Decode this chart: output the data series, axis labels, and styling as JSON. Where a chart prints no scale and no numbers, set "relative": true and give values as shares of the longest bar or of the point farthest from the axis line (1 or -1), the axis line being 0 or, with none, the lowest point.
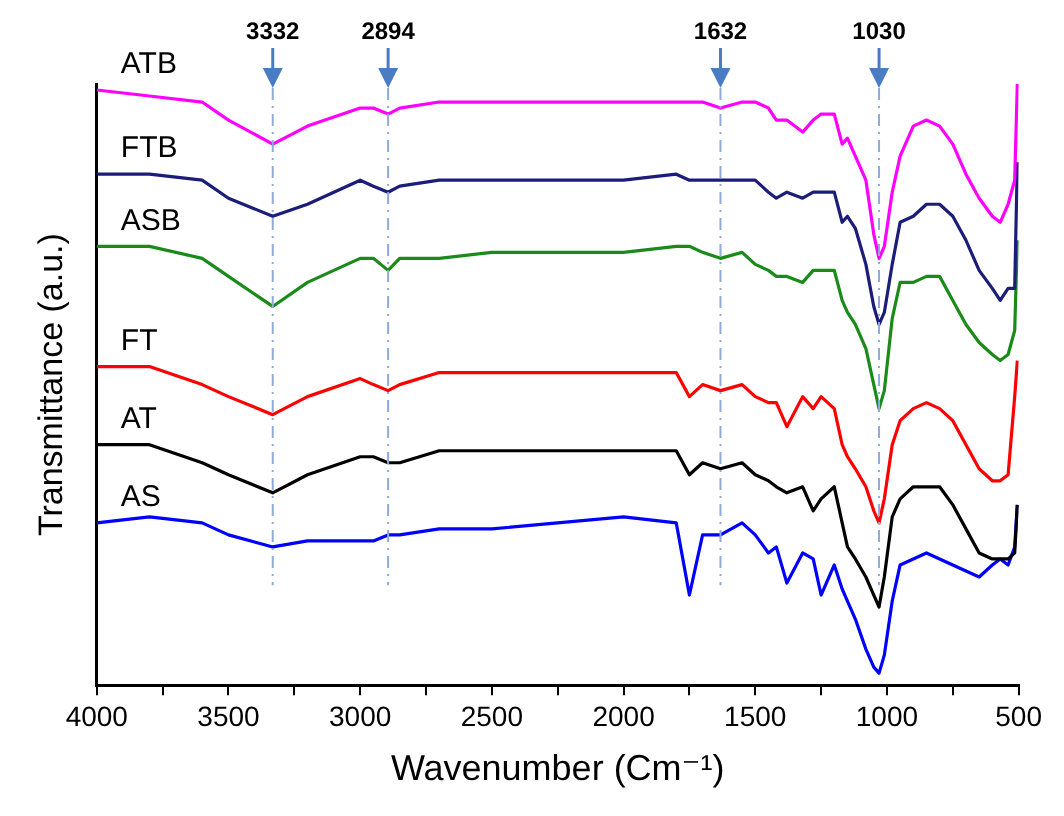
{
  "chart_data": {
    "type": "line",
    "relative": true,
    "xlabel": "Wavenumber (Cm⁻¹)",
    "ylabel": "Transmittance (a.u.)",
    "x": [
      4000,
      3800,
      3600,
      3500,
      3332,
      3200,
      3000,
      2950,
      2894,
      2850,
      2700,
      2500,
      2000,
      1800,
      1750,
      1700,
      1632,
      1550,
      1500,
      1450,
      1420,
      1380,
      1320,
      1280,
      1250,
      1200,
      1170,
      1150,
      1120,
      1080,
      1050,
      1030,
      1010,
      980,
      950,
      900,
      850,
      800,
      750,
      700,
      650,
      600,
      570,
      540,
      515,
      505
    ],
    "xlim": [
      4000,
      500
    ],
    "xticks": [
      4000,
      {
        "value": 3750,
        "label": null
      },
      3500,
      {
        "value": 3250,
        "label": null
      },
      3000,
      {
        "value": 2750,
        "label": null
      },
      2500,
      {
        "value": 2250,
        "label": null
      },
      2000,
      {
        "value": 1750,
        "label": null
      },
      1500,
      {
        "value": 1250,
        "label": null
      },
      1000,
      {
        "value": 750,
        "label": null
      },
      500
    ],
    "legend": false,
    "series": [
      {
        "name": "ATB",
        "color": "#ff00ff",
        "values": [
          0.99,
          0.98,
          0.97,
          0.94,
          0.9,
          0.93,
          0.96,
          0.96,
          0.95,
          0.96,
          0.97,
          0.97,
          0.97,
          0.97,
          0.97,
          0.97,
          0.96,
          0.97,
          0.97,
          0.96,
          0.94,
          0.94,
          0.92,
          0.94,
          0.95,
          0.95,
          0.9,
          0.91,
          0.88,
          0.84,
          0.75,
          0.71,
          0.73,
          0.82,
          0.88,
          0.93,
          0.94,
          0.93,
          0.9,
          0.85,
          0.81,
          0.78,
          0.77,
          0.8,
          0.84,
          1.0
        ]
      },
      {
        "name": "FTB",
        "color": "#1c1c7a",
        "values": [
          0.85,
          0.85,
          0.84,
          0.81,
          0.78,
          0.8,
          0.84,
          0.83,
          0.82,
          0.83,
          0.84,
          0.84,
          0.84,
          0.85,
          0.84,
          0.84,
          0.84,
          0.84,
          0.84,
          0.82,
          0.81,
          0.82,
          0.81,
          0.82,
          0.82,
          0.82,
          0.77,
          0.78,
          0.76,
          0.7,
          0.63,
          0.6,
          0.62,
          0.7,
          0.77,
          0.78,
          0.8,
          0.8,
          0.78,
          0.74,
          0.69,
          0.66,
          0.64,
          0.66,
          0.66,
          0.87
        ]
      },
      {
        "name": "ASB",
        "color": "#1a8a1a",
        "values": [
          0.73,
          0.73,
          0.71,
          0.68,
          0.63,
          0.67,
          0.71,
          0.71,
          0.69,
          0.71,
          0.71,
          0.72,
          0.72,
          0.73,
          0.73,
          0.72,
          0.71,
          0.72,
          0.7,
          0.69,
          0.68,
          0.68,
          0.67,
          0.69,
          0.69,
          0.69,
          0.64,
          0.62,
          0.6,
          0.56,
          0.5,
          0.46,
          0.49,
          0.61,
          0.67,
          0.67,
          0.68,
          0.68,
          0.64,
          0.6,
          0.57,
          0.55,
          0.54,
          0.55,
          0.59,
          0.74
        ]
      },
      {
        "name": "FT",
        "color": "#ff0000",
        "values": [
          0.53,
          0.53,
          0.5,
          0.48,
          0.45,
          0.48,
          0.51,
          0.5,
          0.49,
          0.5,
          0.52,
          0.52,
          0.52,
          0.52,
          0.48,
          0.5,
          0.49,
          0.5,
          0.48,
          0.47,
          0.47,
          0.43,
          0.48,
          0.46,
          0.48,
          0.46,
          0.4,
          0.38,
          0.36,
          0.33,
          0.29,
          0.27,
          0.31,
          0.4,
          0.44,
          0.46,
          0.47,
          0.46,
          0.44,
          0.4,
          0.36,
          0.34,
          0.34,
          0.35,
          0.48,
          0.54
        ]
      },
      {
        "name": "AT",
        "color": "#000000",
        "values": [
          0.4,
          0.4,
          0.37,
          0.35,
          0.32,
          0.35,
          0.38,
          0.38,
          0.37,
          0.37,
          0.39,
          0.39,
          0.39,
          0.39,
          0.35,
          0.37,
          0.36,
          0.37,
          0.35,
          0.34,
          0.33,
          0.32,
          0.33,
          0.29,
          0.31,
          0.33,
          0.27,
          0.23,
          0.21,
          0.18,
          0.15,
          0.13,
          0.18,
          0.28,
          0.31,
          0.33,
          0.33,
          0.33,
          0.3,
          0.26,
          0.22,
          0.21,
          0.21,
          0.21,
          0.22,
          0.3
        ]
      },
      {
        "name": "AS",
        "color": "#0000ff",
        "values": [
          0.27,
          0.28,
          0.27,
          0.25,
          0.23,
          0.24,
          0.24,
          0.24,
          0.25,
          0.25,
          0.26,
          0.26,
          0.28,
          0.27,
          0.15,
          0.25,
          0.25,
          0.27,
          0.25,
          0.22,
          0.23,
          0.17,
          0.22,
          0.21,
          0.15,
          0.2,
          0.16,
          0.14,
          0.11,
          0.06,
          0.03,
          0.02,
          0.05,
          0.14,
          0.2,
          0.21,
          0.22,
          0.21,
          0.2,
          0.19,
          0.18,
          0.2,
          0.21,
          0.2,
          0.23,
          0.3
        ]
      }
    ],
    "ref_lines": [
      {
        "axis": "x",
        "value": 3332,
        "label": "3332",
        "color": "#8faadc",
        "line_style": "dashed"
      },
      {
        "axis": "x",
        "value": 2894,
        "label": "2894",
        "color": "#8faadc",
        "line_style": "dashed"
      },
      {
        "axis": "x",
        "value": 1632,
        "label": "1632",
        "color": "#8faadc",
        "line_style": "dashed"
      },
      {
        "axis": "x",
        "value": 1030,
        "label": "1030",
        "color": "#8faadc",
        "line_style": "dashed"
      }
    ]
  }
}
